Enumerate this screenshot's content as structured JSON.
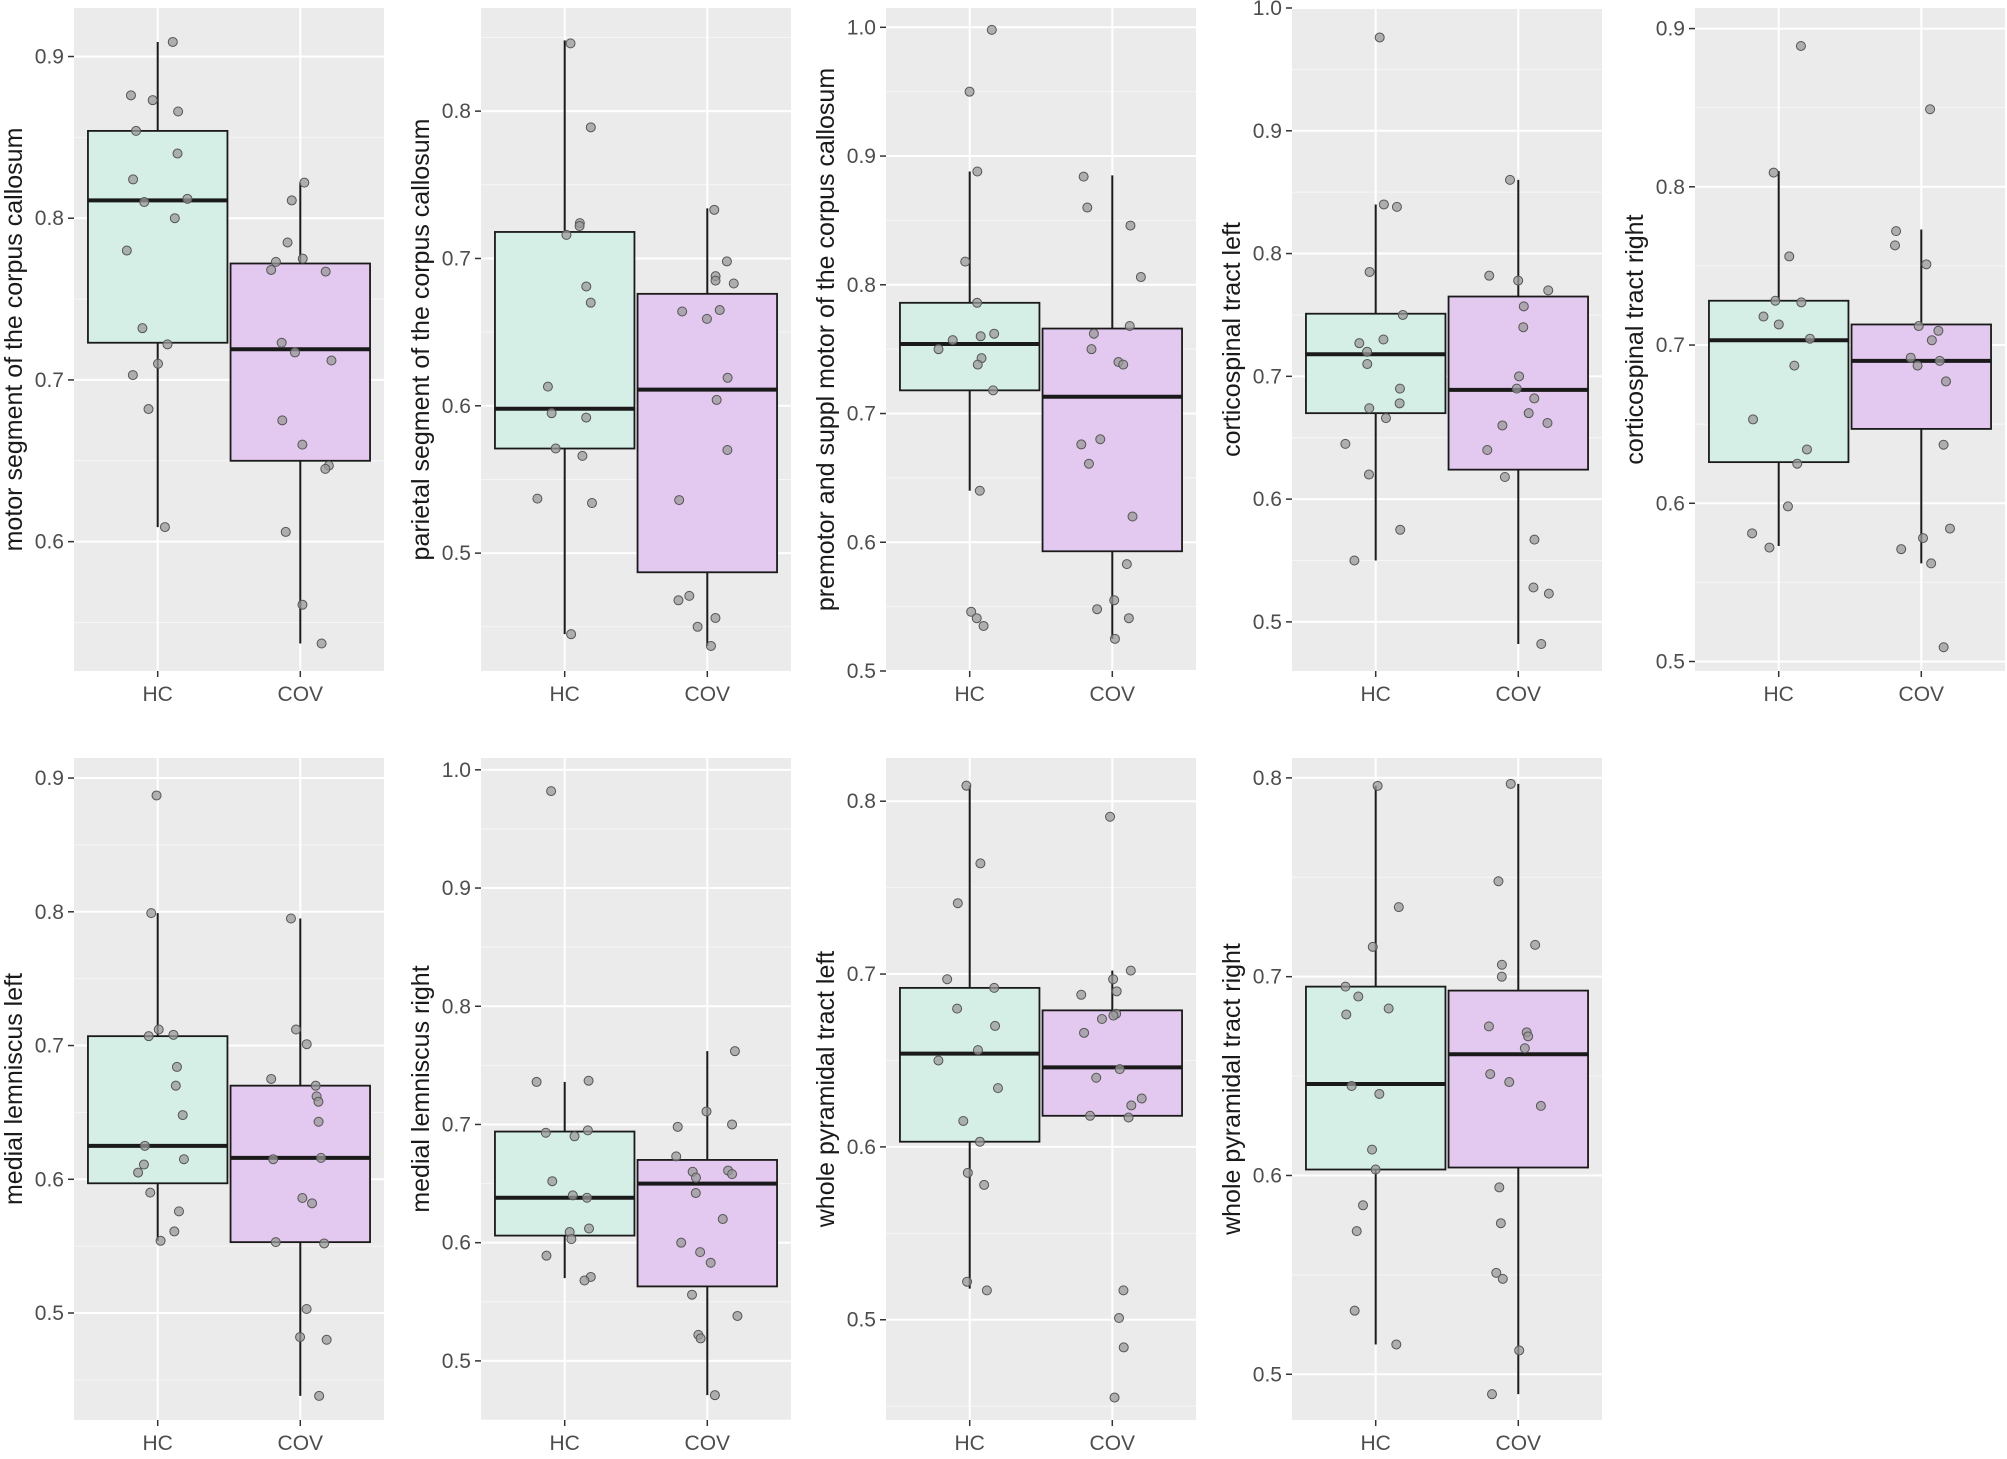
{
  "colors": {
    "panel_bg": "#ebebeb",
    "grid_major": "#ffffff",
    "HC": "#d5efe6",
    "COV": "#e3c8f0",
    "point": "#9a9a9a",
    "median": "#1a1a1a"
  },
  "chart_data": [
    {
      "type": "box",
      "ylabel": "motor segment of the corpus callosum",
      "categories": [
        "HC",
        "COV"
      ],
      "ylim": [
        0.52,
        0.93
      ],
      "yticks": [
        0.6,
        0.7,
        0.8,
        0.9
      ],
      "tick_labels": [
        "0.6",
        "0.7",
        "0.8",
        "0.9"
      ],
      "boxes": [
        {
          "group": "HC",
          "min": 0.609,
          "q1": 0.723,
          "median": 0.811,
          "q3": 0.854,
          "max": 0.909
        },
        {
          "group": "COV",
          "min": 0.537,
          "q1": 0.65,
          "median": 0.719,
          "q3": 0.772,
          "max": 0.822
        }
      ],
      "points": [
        [
          0.909,
          0.876,
          0.873,
          0.866,
          0.854,
          0.84,
          0.824,
          0.812,
          0.81,
          0.8,
          0.78,
          0.732,
          0.722,
          0.71,
          0.703,
          0.682,
          0.609
        ],
        [
          0.822,
          0.811,
          0.785,
          0.775,
          0.773,
          0.768,
          0.767,
          0.723,
          0.717,
          0.712,
          0.675,
          0.66,
          0.647,
          0.645,
          0.606,
          0.561,
          0.537
        ]
      ]
    },
    {
      "type": "box",
      "ylabel": "parietal segment of the corpus callosum",
      "categories": [
        "HC",
        "COV"
      ],
      "ylim": [
        0.42,
        0.87
      ],
      "yticks": [
        0.5,
        0.6,
        0.7,
        0.8
      ],
      "tick_labels": [
        "0.5",
        "0.6",
        "0.7",
        "0.8"
      ],
      "boxes": [
        {
          "group": "HC",
          "min": 0.445,
          "q1": 0.571,
          "median": 0.598,
          "q3": 0.718,
          "max": 0.848
        },
        {
          "group": "COV",
          "min": 0.437,
          "q1": 0.487,
          "median": 0.611,
          "q3": 0.676,
          "max": 0.734
        }
      ],
      "points": [
        [
          0.846,
          0.789,
          0.724,
          0.722,
          0.716,
          0.681,
          0.67,
          0.613,
          0.595,
          0.592,
          0.571,
          0.566,
          0.537,
          0.534,
          0.445
        ],
        [
          0.733,
          0.698,
          0.688,
          0.685,
          0.683,
          0.665,
          0.664,
          0.659,
          0.619,
          0.604,
          0.57,
          0.536,
          0.471,
          0.468,
          0.456,
          0.45,
          0.437
        ]
      ]
    },
    {
      "type": "box",
      "ylabel": "premotor and suppl motor of the corpus callosum",
      "categories": [
        "HC",
        "COV"
      ],
      "ylim": [
        0.5,
        1.015
      ],
      "yticks": [
        0.5,
        0.6,
        0.7,
        0.8,
        0.9,
        1.0
      ],
      "tick_labels": [
        "0.5",
        "0.6",
        "0.7",
        "0.8",
        "0.9",
        "1.0"
      ],
      "boxes": [
        {
          "group": "HC",
          "min": 0.64,
          "q1": 0.718,
          "median": 0.754,
          "q3": 0.786,
          "max": 0.888
        },
        {
          "group": "COV",
          "min": 0.525,
          "q1": 0.593,
          "median": 0.713,
          "q3": 0.766,
          "max": 0.885
        }
      ],
      "points": [
        [
          0.998,
          0.95,
          0.888,
          0.818,
          0.786,
          0.762,
          0.76,
          0.757,
          0.75,
          0.743,
          0.738,
          0.718,
          0.64,
          0.546,
          0.541,
          0.535
        ],
        [
          0.884,
          0.86,
          0.846,
          0.806,
          0.768,
          0.762,
          0.75,
          0.74,
          0.738,
          0.68,
          0.676,
          0.661,
          0.62,
          0.583,
          0.555,
          0.548,
          0.541,
          0.525
        ]
      ]
    },
    {
      "type": "box",
      "ylabel": "corticospinal tract left",
      "categories": [
        "HC",
        "COV"
      ],
      "ylim": [
        0.46,
        1.0
      ],
      "yticks": [
        0.5,
        0.6,
        0.7,
        0.8,
        0.9,
        1.0
      ],
      "tick_labels": [
        "0.5",
        "0.6",
        "0.7",
        "0.8",
        "0.9",
        "1.0"
      ],
      "boxes": [
        {
          "group": "HC",
          "min": 0.55,
          "q1": 0.67,
          "median": 0.718,
          "q3": 0.751,
          "max": 0.84
        },
        {
          "group": "COV",
          "min": 0.482,
          "q1": 0.624,
          "median": 0.689,
          "q3": 0.765,
          "max": 0.86
        }
      ],
      "points": [
        [
          0.976,
          0.84,
          0.838,
          0.785,
          0.75,
          0.73,
          0.727,
          0.72,
          0.71,
          0.69,
          0.678,
          0.674,
          0.666,
          0.645,
          0.62,
          0.575,
          0.55
        ],
        [
          0.86,
          0.782,
          0.778,
          0.77,
          0.757,
          0.74,
          0.7,
          0.69,
          0.682,
          0.67,
          0.662,
          0.66,
          0.64,
          0.618,
          0.567,
          0.528,
          0.523,
          0.482
        ]
      ]
    },
    {
      "type": "box",
      "ylabel": "corticospinal tract right",
      "categories": [
        "HC",
        "COV"
      ],
      "ylim": [
        0.494,
        0.913
      ],
      "yticks": [
        0.5,
        0.6,
        0.7,
        0.8,
        0.9
      ],
      "tick_labels": [
        "0.5",
        "0.6",
        "0.7",
        "0.8",
        "0.9"
      ],
      "boxes": [
        {
          "group": "HC",
          "min": 0.573,
          "q1": 0.626,
          "median": 0.703,
          "q3": 0.728,
          "max": 0.81
        },
        {
          "group": "COV",
          "min": 0.562,
          "q1": 0.647,
          "median": 0.69,
          "q3": 0.713,
          "max": 0.773
        }
      ],
      "points": [
        [
          0.889,
          0.809,
          0.756,
          0.728,
          0.727,
          0.718,
          0.713,
          0.704,
          0.687,
          0.653,
          0.634,
          0.625,
          0.598,
          0.581,
          0.572
        ],
        [
          0.849,
          0.772,
          0.763,
          0.751,
          0.712,
          0.709,
          0.703,
          0.692,
          0.69,
          0.687,
          0.677,
          0.637,
          0.584,
          0.578,
          0.571,
          0.562,
          0.509
        ]
      ]
    },
    {
      "type": "box",
      "ylabel": "medial lemniscus left",
      "categories": [
        "HC",
        "COV"
      ],
      "ylim": [
        0.42,
        0.915
      ],
      "yticks": [
        0.5,
        0.6,
        0.7,
        0.8,
        0.9
      ],
      "tick_labels": [
        "0.5",
        "0.6",
        "0.7",
        "0.8",
        "0.9"
      ],
      "boxes": [
        {
          "group": "HC",
          "min": 0.554,
          "q1": 0.597,
          "median": 0.625,
          "q3": 0.707,
          "max": 0.799
        },
        {
          "group": "COV",
          "min": 0.438,
          "q1": 0.553,
          "median": 0.616,
          "q3": 0.67,
          "max": 0.795
        }
      ],
      "points": [
        [
          0.887,
          0.799,
          0.712,
          0.708,
          0.707,
          0.684,
          0.67,
          0.648,
          0.625,
          0.615,
          0.611,
          0.605,
          0.59,
          0.576,
          0.561,
          0.554
        ],
        [
          0.795,
          0.712,
          0.701,
          0.675,
          0.67,
          0.662,
          0.658,
          0.643,
          0.616,
          0.615,
          0.586,
          0.582,
          0.553,
          0.552,
          0.503,
          0.482,
          0.48,
          0.438
        ]
      ]
    },
    {
      "type": "box",
      "ylabel": "medial lemniscus right",
      "categories": [
        "HC",
        "COV"
      ],
      "ylim": [
        0.45,
        1.01
      ],
      "yticks": [
        0.5,
        0.6,
        0.7,
        0.8,
        0.9,
        1.0
      ],
      "tick_labels": [
        "0.5",
        "0.6",
        "0.7",
        "0.8",
        "0.9",
        "1.0"
      ],
      "boxes": [
        {
          "group": "HC",
          "min": 0.57,
          "q1": 0.606,
          "median": 0.638,
          "q3": 0.694,
          "max": 0.736
        },
        {
          "group": "COV",
          "min": 0.471,
          "q1": 0.563,
          "median": 0.65,
          "q3": 0.67,
          "max": 0.762
        }
      ],
      "points": [
        [
          0.982,
          0.737,
          0.736,
          0.695,
          0.693,
          0.69,
          0.652,
          0.64,
          0.638,
          0.612,
          0.609,
          0.603,
          0.589,
          0.571,
          0.568
        ],
        [
          0.762,
          0.711,
          0.7,
          0.698,
          0.673,
          0.661,
          0.66,
          0.658,
          0.655,
          0.642,
          0.62,
          0.6,
          0.592,
          0.583,
          0.556,
          0.538,
          0.522,
          0.519,
          0.471
        ]
      ]
    },
    {
      "type": "box",
      "ylabel": "whole pyramidal tract left",
      "categories": [
        "HC",
        "COV"
      ],
      "ylim": [
        0.442,
        0.825
      ],
      "yticks": [
        0.5,
        0.6,
        0.7,
        0.8
      ],
      "tick_labels": [
        "0.5",
        "0.6",
        "0.7",
        "0.8"
      ],
      "boxes": [
        {
          "group": "HC",
          "min": 0.518,
          "q1": 0.603,
          "median": 0.654,
          "q3": 0.692,
          "max": 0.809
        },
        {
          "group": "COV",
          "min": 0.618,
          "q1": 0.618,
          "median": 0.646,
          "q3": 0.679,
          "max": 0.702
        }
      ],
      "points": [
        [
          0.809,
          0.764,
          0.741,
          0.697,
          0.692,
          0.68,
          0.67,
          0.656,
          0.65,
          0.634,
          0.615,
          0.603,
          0.585,
          0.578,
          0.522,
          0.517
        ],
        [
          0.791,
          0.702,
          0.697,
          0.69,
          0.688,
          0.677,
          0.676,
          0.674,
          0.666,
          0.645,
          0.64,
          0.628,
          0.624,
          0.618,
          0.617,
          0.517,
          0.501,
          0.484,
          0.455
        ]
      ]
    },
    {
      "type": "box",
      "ylabel": "whole pyramidal tract right",
      "categories": [
        "HC",
        "COV"
      ],
      "ylim": [
        0.477,
        0.81
      ],
      "yticks": [
        0.5,
        0.6,
        0.7,
        0.8
      ],
      "tick_labels": [
        "0.5",
        "0.6",
        "0.7",
        "0.8"
      ],
      "boxes": [
        {
          "group": "HC",
          "min": 0.515,
          "q1": 0.603,
          "median": 0.646,
          "q3": 0.695,
          "max": 0.796
        },
        {
          "group": "COV",
          "min": 0.49,
          "q1": 0.604,
          "median": 0.661,
          "q3": 0.693,
          "max": 0.797
        }
      ],
      "points": [
        [
          0.796,
          0.735,
          0.715,
          0.695,
          0.69,
          0.684,
          0.681,
          0.645,
          0.641,
          0.613,
          0.603,
          0.585,
          0.572,
          0.532,
          0.515
        ],
        [
          0.797,
          0.748,
          0.716,
          0.706,
          0.7,
          0.675,
          0.672,
          0.67,
          0.664,
          0.651,
          0.647,
          0.635,
          0.594,
          0.576,
          0.551,
          0.548,
          0.512,
          0.49
        ]
      ]
    }
  ]
}
